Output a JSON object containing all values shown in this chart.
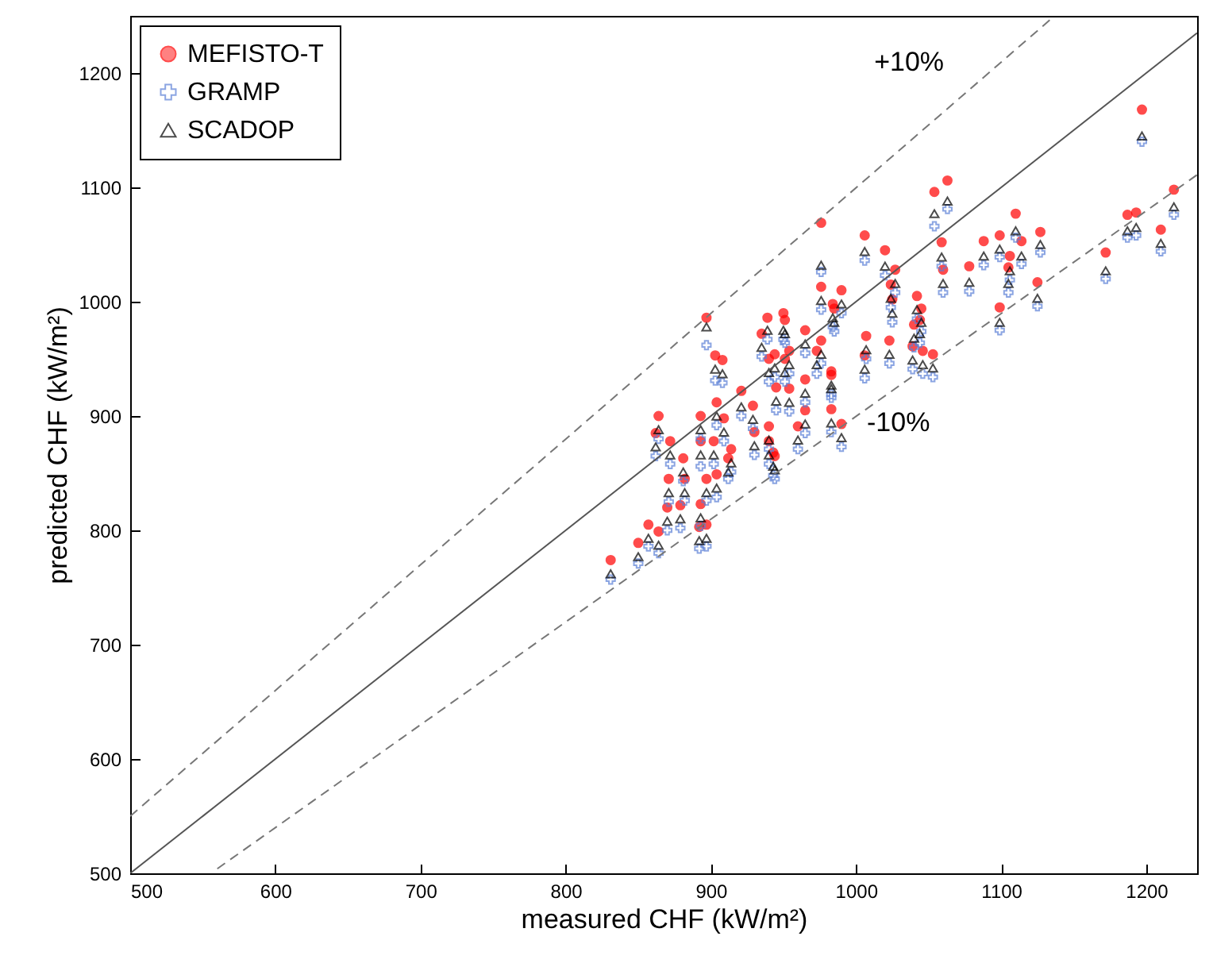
{
  "chart_data": {
    "type": "scatter",
    "xlabel": "measured CHF (kW/m²)",
    "ylabel": "predicted CHF (kW/m²)",
    "xlim": [
      500,
      1235
    ],
    "ylim": [
      500,
      1250
    ],
    "xticks": [
      500,
      600,
      700,
      800,
      900,
      1000,
      1100,
      1200
    ],
    "yticks": [
      500,
      600,
      700,
      800,
      900,
      1000,
      1100,
      1200
    ],
    "grid": false,
    "legend": "top left",
    "x": [
      897,
      903,
      908,
      864,
      862,
      872,
      881,
      893,
      893,
      902,
      904,
      909,
      914,
      912,
      921,
      929,
      939,
      950,
      935,
      940,
      951,
      945,
      954,
      930,
      940,
      943,
      871,
      882,
      897,
      904,
      870,
      879,
      893,
      857,
      864,
      850,
      897,
      892,
      831,
      960,
      1197,
      1054,
      1063,
      976,
      1006,
      1020,
      1059,
      1027,
      1060,
      1078,
      1088,
      1099,
      1110,
      1127,
      1114,
      1106,
      1105,
      1125,
      1099,
      1172,
      1187,
      1193,
      1210,
      1219,
      976,
      990,
      984,
      1025,
      1024,
      1042,
      1040,
      1045,
      1023,
      1007,
      1006,
      1046,
      1053,
      983,
      965,
      976,
      965,
      951,
      985,
      973,
      954,
      944,
      983,
      983,
      965,
      990,
      940,
      944,
      1044,
      1039
    ],
    "series": [
      {
        "name": "MEFISTO-T",
        "color": "#ff0000",
        "marker": "circle",
        "values": [
          986,
          953,
          949,
          900,
          885,
          878,
          863,
          900,
          878,
          878,
          912,
          898,
          871,
          863,
          922,
          909,
          986,
          990,
          972,
          950,
          950,
          925,
          924,
          886,
          891,
          868,
          845,
          845,
          845,
          849,
          820,
          822,
          823,
          805,
          799,
          789,
          805,
          803,
          774,
          891,
          1168,
          1096,
          1106,
          1069,
          1058,
          1045,
          1052,
          1028,
          1028,
          1031,
          1053,
          1058,
          1077,
          1061,
          1053,
          1040,
          1030,
          1017,
          995,
          1043,
          1076,
          1078,
          1063,
          1098,
          1013,
          1010,
          998,
          1002,
          1015,
          1005,
          980,
          994,
          966,
          970,
          953,
          957,
          954,
          939,
          932,
          966,
          975,
          984,
          994,
          957,
          957,
          954,
          936,
          906,
          905,
          893,
          878,
          865,
          984,
          961
        ]
      },
      {
        "name": "GRAMP",
        "color": "#5b7fd6",
        "marker": "cross",
        "values": [
          962,
          931,
          929,
          880,
          865,
          858,
          843,
          880,
          856,
          858,
          892,
          878,
          851,
          845,
          900,
          889,
          967,
          967,
          952,
          930,
          930,
          905,
          904,
          866,
          871,
          848,
          825,
          826,
          826,
          829,
          800,
          802,
          804,
          786,
          780,
          771,
          786,
          784,
          757,
          871,
          1140,
          1066,
          1081,
          1026,
          1036,
          1023,
          1031,
          1008,
          1008,
          1009,
          1032,
          1039,
          1056,
          1043,
          1033,
          1019,
          1008,
          996,
          975,
          1020,
          1056,
          1058,
          1044,
          1076,
          993,
          990,
          978,
          982,
          995,
          985,
          960,
          974,
          946,
          950,
          933,
          937,
          934,
          919,
          912,
          946,
          955,
          964,
          974,
          937,
          937,
          934,
          916,
          886,
          885,
          873,
          858,
          845,
          964,
          941
        ]
      },
      {
        "name": "SCADOP",
        "color": "#000000",
        "marker": "triangle",
        "values": [
          978,
          941,
          937,
          888,
          873,
          866,
          851,
          888,
          866,
          866,
          900,
          886,
          859,
          851,
          908,
          897,
          975,
          975,
          960,
          938,
          938,
          913,
          912,
          874,
          879,
          856,
          833,
          833,
          833,
          837,
          808,
          810,
          811,
          793,
          787,
          777,
          793,
          791,
          762,
          879,
          1145,
          1077,
          1088,
          1032,
          1044,
          1031,
          1039,
          1016,
          1016,
          1017,
          1040,
          1046,
          1062,
          1050,
          1040,
          1027,
          1016,
          1003,
          982,
          1027,
          1062,
          1065,
          1051,
          1083,
          1001,
          998,
          986,
          990,
          1003,
          993,
          968,
          982,
          954,
          958,
          941,
          945,
          942,
          927,
          920,
          954,
          963,
          972,
          982,
          945,
          945,
          942,
          924,
          894,
          893,
          881,
          866,
          853,
          972,
          949
        ]
      },
      {
        "type": "line",
        "color": "#555555",
        "line_style": "solid",
        "x": [
          500,
          1235
        ],
        "values": [
          500,
          1235
        ]
      },
      {
        "type": "line",
        "color": "#777777",
        "line_style": "dashed",
        "x": [
          500,
          1135
        ],
        "values": [
          550,
          1248
        ]
      },
      {
        "type": "line",
        "color": "#777777",
        "line_style": "dashed",
        "x": [
          560,
          1235
        ],
        "values": [
          504,
          1111
        ]
      }
    ],
    "annotations": [
      "+10%",
      "-10%"
    ]
  }
}
